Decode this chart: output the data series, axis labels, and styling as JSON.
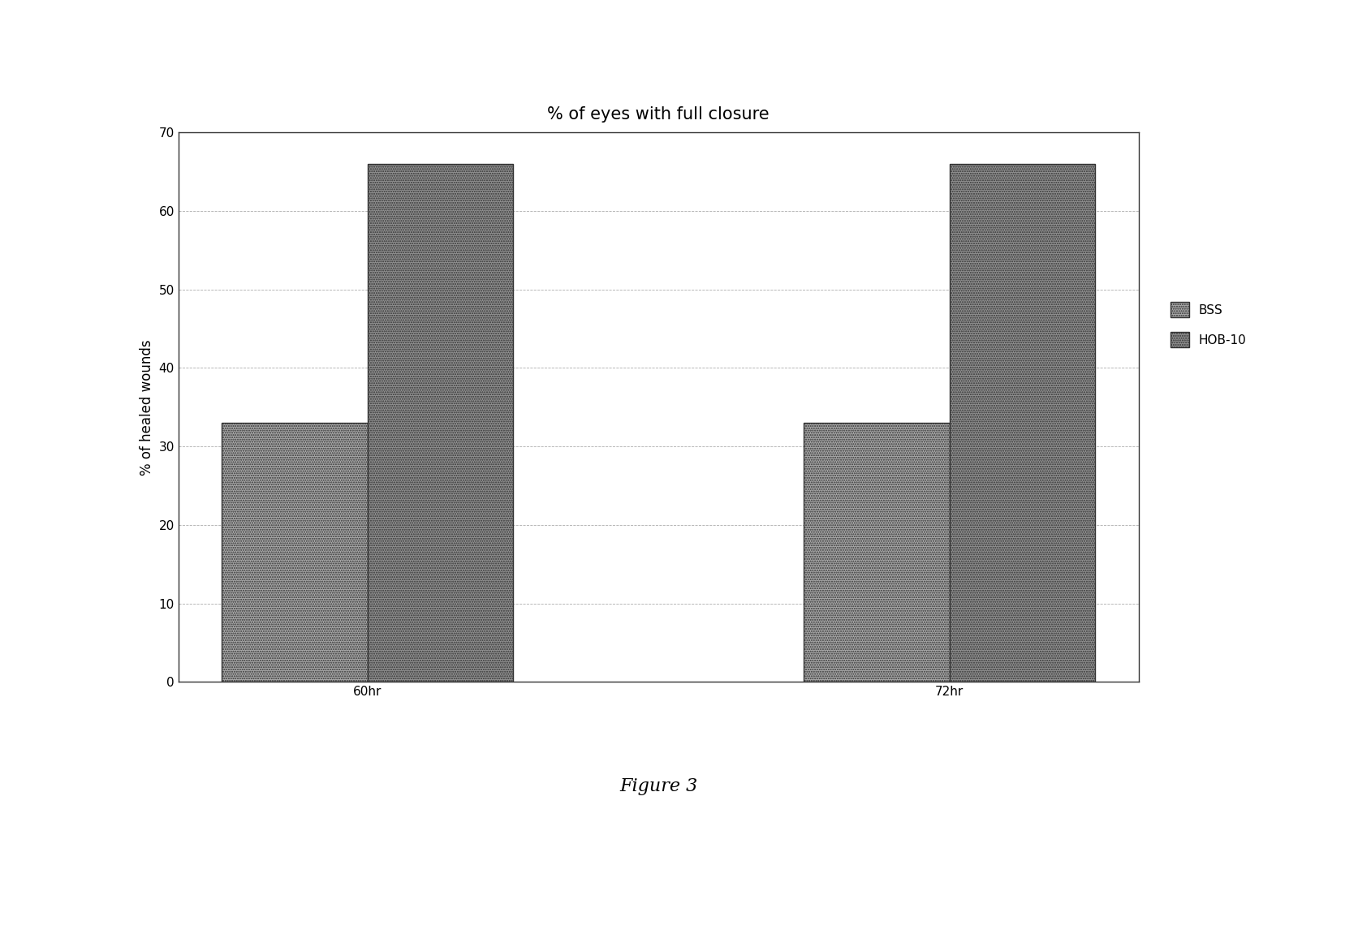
{
  "title": "% of eyes with full closure",
  "ylabel": "% of healed wounds",
  "categories": [
    "60hr",
    "72hr"
  ],
  "bss_values": [
    33,
    66
  ],
  "hob10_values": [
    33,
    66
  ],
  "ylim": [
    0,
    70
  ],
  "yticks": [
    0,
    10,
    20,
    30,
    40,
    50,
    60,
    70
  ],
  "legend_labels": [
    "BSS",
    "HOB-10"
  ],
  "bar_width": 0.25,
  "bss_color": "#a8a8a8",
  "hob10_color": "#909090",
  "figure_caption": "Figure 3",
  "title_fontsize": 15,
  "label_fontsize": 12,
  "tick_fontsize": 11,
  "legend_fontsize": 11,
  "caption_fontsize": 16,
  "background_color": "#ffffff",
  "chart_bg_color": "#ffffff",
  "grid_color": "#999999",
  "bss_data": [
    33,
    33
  ],
  "hob10_data": [
    66,
    66
  ]
}
